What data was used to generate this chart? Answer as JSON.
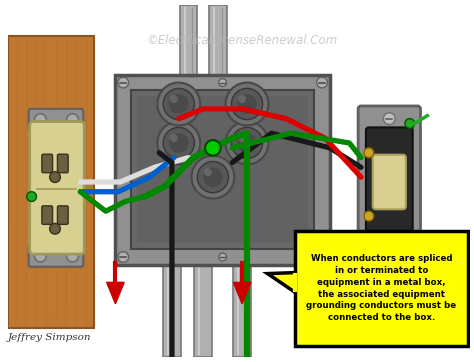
{
  "bg_color": "#ffffff",
  "watermark_text": "©ElectricalLicenseRenewal.Com",
  "watermark_color": "#bbbbbb",
  "credit_text": "Jeffrey Simpson",
  "credit_color": "#333333",
  "callout_text": "When conductors are spliced\nin or terminated to\nequipment in a metal box,\nthe associated equipment\ngrounding conductors must be\nconnected to the box.",
  "callout_bg": "#ffff00",
  "callout_border": "#000000",
  "callout_text_color": "#000000",
  "wood_color": "#c07830",
  "wood_dark": "#8a5520",
  "wood_grain": "#a06420",
  "box_outer": "#909090",
  "box_mid": "#787878",
  "box_inner": "#686868",
  "box_border": "#505050",
  "conduit_color": "#b0b0b0",
  "conduit_dark": "#787878",
  "conduit_light": "#d8d8d8",
  "outlet_color": "#d8d090",
  "outlet_dark": "#a09858",
  "outlet_slot": "#6a6040",
  "switch_plate": "#909090",
  "switch_body": "#282828",
  "switch_toggle": "#d8cf90",
  "switch_screw": "#aaaaaa",
  "terminal_gold": "#c8a820",
  "wire_red": "#dd0000",
  "wire_black": "#181818",
  "wire_white": "#dddddd",
  "wire_green": "#008800",
  "wire_blue": "#0060cc",
  "green_dot": "#00cc00",
  "arrow_red": "#cc0000"
}
